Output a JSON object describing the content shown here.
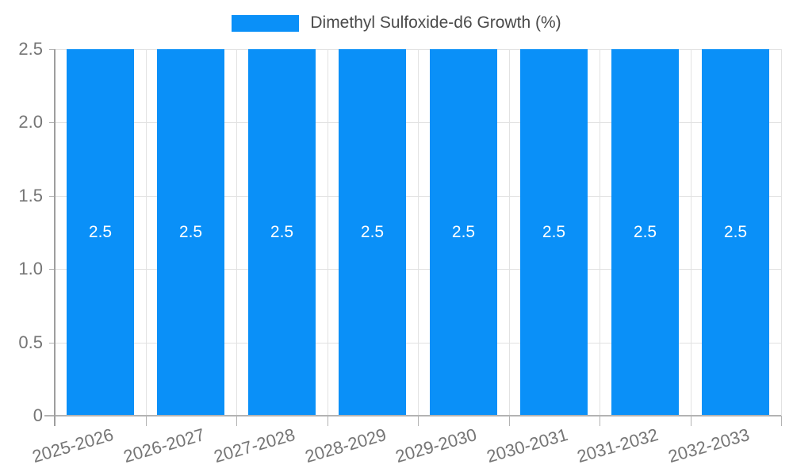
{
  "legend": {
    "label": "Dimethyl Sulfoxide-d6 Growth (%)"
  },
  "chart_data": {
    "type": "bar",
    "title": "Dimethyl Sulfoxide-d6 Growth (%)",
    "categories": [
      "2025-2026",
      "2026-2027",
      "2027-2028",
      "2028-2029",
      "2029-2030",
      "2030-2031",
      "2031-2032",
      "2032-2033"
    ],
    "values": [
      2.5,
      2.5,
      2.5,
      2.5,
      2.5,
      2.5,
      2.5,
      2.5
    ],
    "bar_labels": [
      "2.5",
      "2.5",
      "2.5",
      "2.5",
      "2.5",
      "2.5",
      "2.5",
      "2.5"
    ],
    "xlabel": "",
    "ylabel": "",
    "ylim": [
      0,
      2.5
    ],
    "ytick_values": [
      0,
      0.5,
      1.0,
      1.5,
      2.0,
      2.5
    ],
    "ytick_labels": [
      "0",
      "0.5",
      "1.0",
      "1.5",
      "2.0",
      "2.5"
    ],
    "grid": true,
    "legend_position": "top-center",
    "x_label_rotation_deg": -16,
    "colors": {
      "bar": "#0a90f8",
      "grid": "#e2e2e2",
      "axis": "#b3b3b3",
      "axis_strong": "#9e9e9e",
      "tick_text": "#757575",
      "legend_text": "#4a4a4a",
      "bar_label": "#ffffff",
      "background": "#ffffff"
    }
  }
}
